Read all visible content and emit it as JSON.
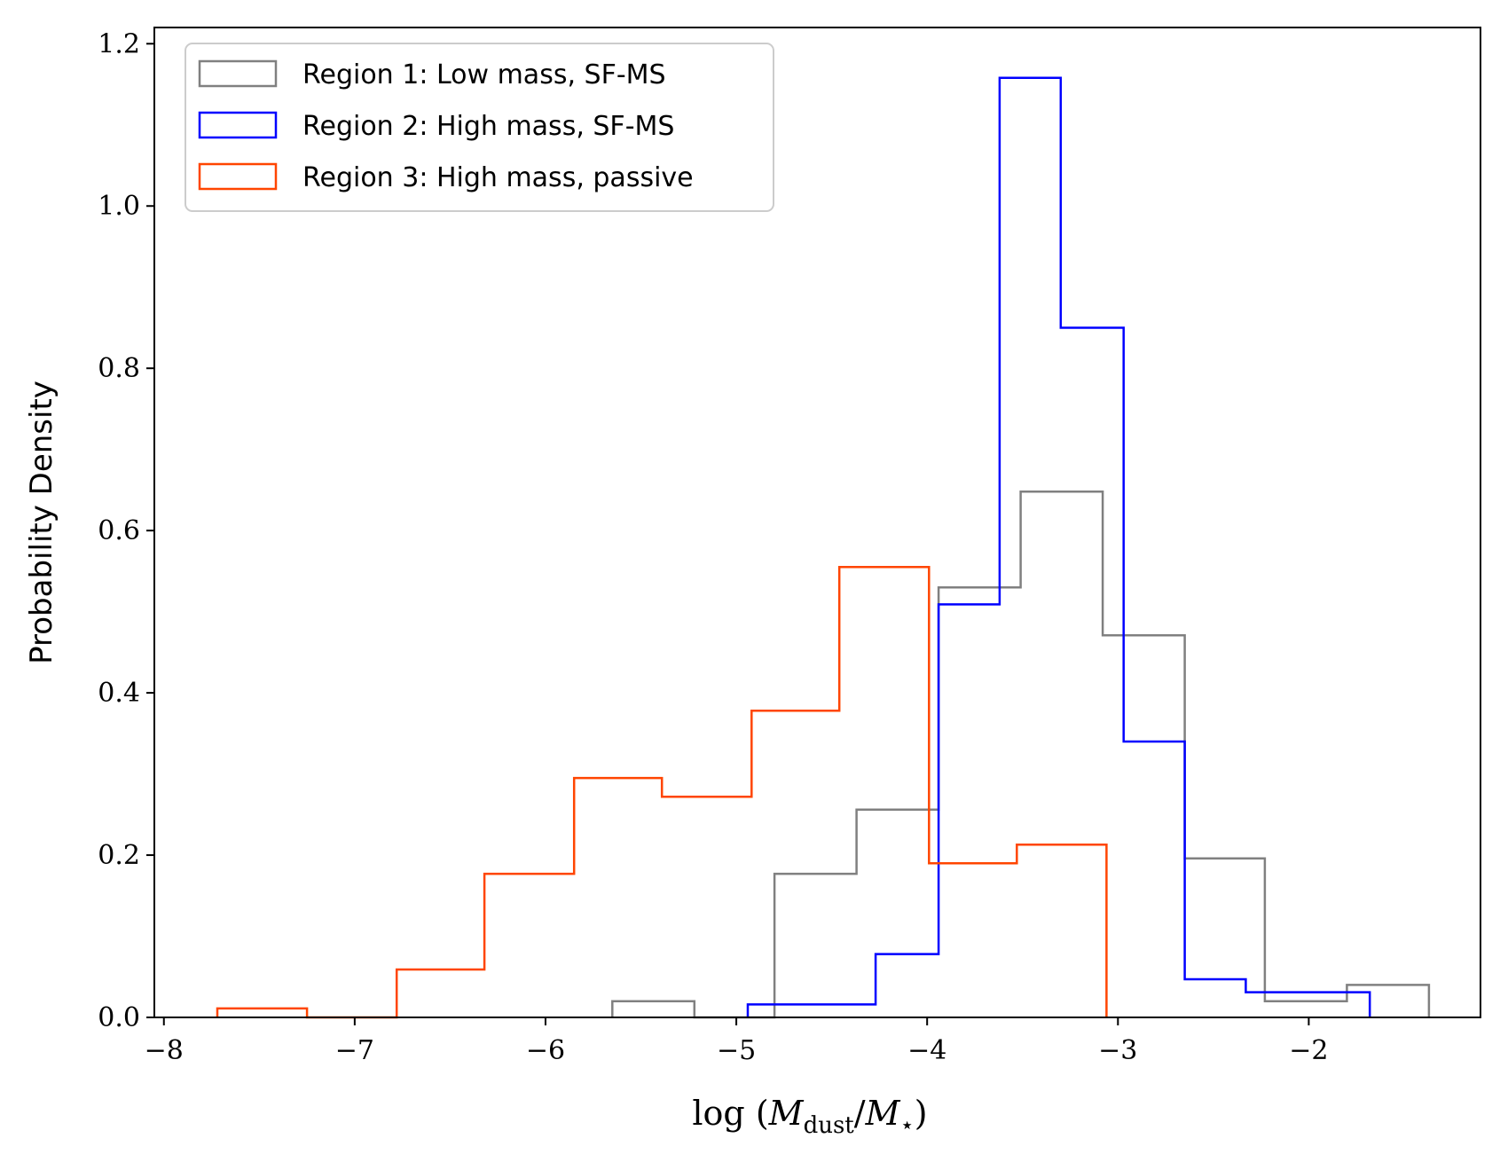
{
  "chart_data": {
    "type": "histogram",
    "title": "",
    "xlabel": "log (M_dust/M_⋆)",
    "ylabel": "Probability Density",
    "xlim": [
      -8.05,
      -1.1
    ],
    "ylim": [
      0.0,
      1.22
    ],
    "x_ticks": [
      -8,
      -7,
      -6,
      -5,
      -4,
      -3,
      -2
    ],
    "x_tick_labels": [
      "−8",
      "−7",
      "−6",
      "−5",
      "−4",
      "−3",
      "−2"
    ],
    "y_ticks": [
      0.0,
      0.2,
      0.4,
      0.6,
      0.8,
      1.0,
      1.2
    ],
    "y_tick_labels": [
      "0.0",
      "0.2",
      "0.4",
      "0.6",
      "0.8",
      "1.0",
      "1.2"
    ],
    "grid": false,
    "legend_position": "top-left",
    "series": [
      {
        "name": "Region 1: Low mass, SF-MS",
        "color": "#808080",
        "bin_edges": [
          -5.65,
          -5.22,
          -4.8,
          -4.37,
          -3.94,
          -3.51,
          -3.08,
          -2.65,
          -2.23,
          -1.8,
          -1.37
        ],
        "values": [
          0.02,
          0.0,
          0.177,
          0.256,
          0.53,
          0.648,
          0.471,
          0.196,
          0.02,
          0.04
        ]
      },
      {
        "name": "Region 2: High mass, SF-MS",
        "color": "#0000ff",
        "bin_edges": [
          -4.94,
          -4.27,
          -3.94,
          -3.62,
          -3.3,
          -2.97,
          -2.65,
          -2.33,
          -1.68
        ],
        "values": [
          0.016,
          0.078,
          0.509,
          1.158,
          0.85,
          0.34,
          0.047,
          0.031
        ]
      },
      {
        "name": "Region 3: High mass, passive",
        "color": "#ff4500",
        "bin_edges": [
          -7.72,
          -7.25,
          -6.78,
          -6.32,
          -5.85,
          -5.39,
          -4.92,
          -4.46,
          -3.99,
          -3.53,
          -3.06
        ],
        "values": [
          0.011,
          0.0,
          0.059,
          0.177,
          0.295,
          0.272,
          0.378,
          0.555,
          0.19,
          0.213
        ]
      }
    ]
  }
}
